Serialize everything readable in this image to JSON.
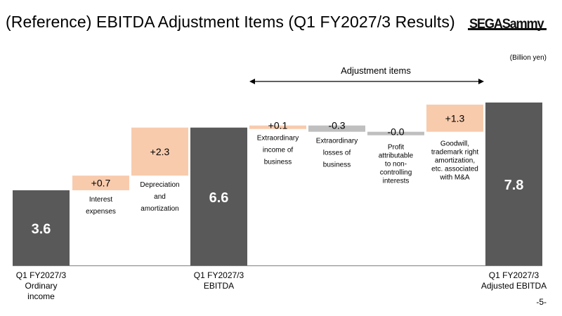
{
  "header": {
    "title": "(Reference) EBITDA Adjustment Items (Q1 FY2027/3 Results)",
    "logo_text": "SEGASammy"
  },
  "unit_label": "(Billion yen)",
  "adjustment_label": "Adjustment items",
  "page_number": "-5-",
  "colors": {
    "total": "#595959",
    "increase": "#F8CBAD",
    "decrease": "#BFBFBF",
    "total_text": "#ffffff",
    "axis": "#7f7f7f"
  },
  "chart_data": {
    "type": "bar",
    "subtype": "waterfall",
    "unit": "Billion yen",
    "ylim": [
      0,
      7.8
    ],
    "bars": [
      {
        "kind": "total",
        "value": 3.6,
        "label": "3.6",
        "category": [
          "Q1 FY2027/3",
          "Ordinary",
          "income"
        ]
      },
      {
        "kind": "delta",
        "value": 0.7,
        "label": "+0.7",
        "caption": [
          "Interest",
          "expenses"
        ]
      },
      {
        "kind": "delta",
        "value": 2.3,
        "label": "+2.3",
        "caption": [
          "Depreciation",
          "and",
          "amortization"
        ]
      },
      {
        "kind": "total",
        "value": 6.6,
        "label": "6.6",
        "category": [
          "Q1 FY2027/3",
          "EBITDA"
        ]
      },
      {
        "kind": "delta",
        "value": 0.1,
        "label": "+0.1",
        "caption": [
          "Extraordinary",
          "income of",
          "business"
        ]
      },
      {
        "kind": "delta",
        "value": -0.3,
        "label": "-0.3",
        "caption": [
          "Extraordinary",
          "losses of",
          "business"
        ]
      },
      {
        "kind": "delta",
        "value": -0.0,
        "label": "-0.0",
        "caption": [
          "Profit",
          "attributable",
          "to non-",
          "controlling",
          "interests"
        ]
      },
      {
        "kind": "delta",
        "value": 1.3,
        "label": "+1.3",
        "caption": [
          "Goodwill,",
          "trademark right",
          "amortization,",
          "etc. associated",
          "with M&A"
        ]
      },
      {
        "kind": "total",
        "value": 7.8,
        "label": "7.8",
        "category": [
          "Q1 FY2027/3",
          "Adjusted EBITDA"
        ]
      }
    ]
  }
}
